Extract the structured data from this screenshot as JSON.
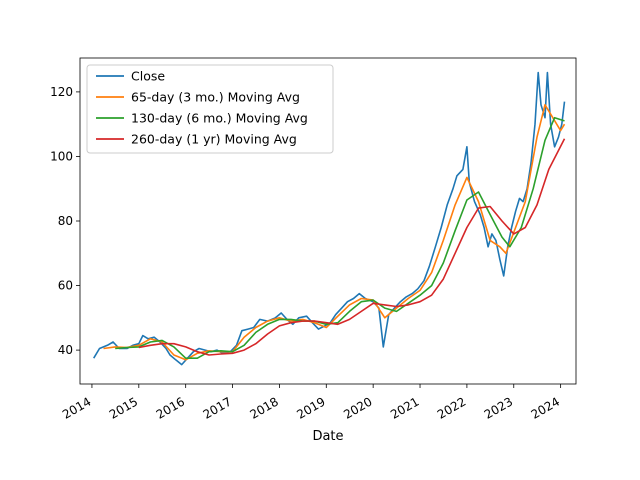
{
  "chart_data": {
    "type": "line",
    "xlabel": "Date",
    "ylabel": "",
    "xlim": [
      "2013-09-30",
      "2024-04-30"
    ],
    "ylim": [
      29.5,
      130.5
    ],
    "x_ticks": [
      "2014",
      "2015",
      "2016",
      "2017",
      "2018",
      "2019",
      "2020",
      "2021",
      "2022",
      "2023",
      "2024"
    ],
    "y_ticks": [
      40,
      60,
      80,
      100,
      120
    ],
    "grid": false,
    "legend_position": "top-left",
    "series": [
      {
        "name": "Close",
        "color": "#1f77b4",
        "points": [
          [
            "2014-01-15",
            37.5
          ],
          [
            "2014-03-01",
            40.5
          ],
          [
            "2014-05-01",
            41.5
          ],
          [
            "2014-06-15",
            42.5
          ],
          [
            "2014-08-01",
            40.5
          ],
          [
            "2014-10-01",
            40.5
          ],
          [
            "2014-11-15",
            41.5
          ],
          [
            "2015-01-01",
            42.0
          ],
          [
            "2015-02-01",
            44.5
          ],
          [
            "2015-03-15",
            43.5
          ],
          [
            "2015-05-01",
            44.0
          ],
          [
            "2015-06-15",
            42.5
          ],
          [
            "2015-08-01",
            40.5
          ],
          [
            "2015-09-01",
            38.5
          ],
          [
            "2015-10-15",
            37.0
          ],
          [
            "2015-12-01",
            35.5
          ],
          [
            "2016-01-15",
            37.5
          ],
          [
            "2016-03-01",
            39.5
          ],
          [
            "2016-04-15",
            40.5
          ],
          [
            "2016-06-01",
            40.0
          ],
          [
            "2016-07-15",
            39.5
          ],
          [
            "2016-09-01",
            40.0
          ],
          [
            "2016-10-15",
            39.0
          ],
          [
            "2016-12-15",
            39.5
          ],
          [
            "2017-02-01",
            41.5
          ],
          [
            "2017-03-15",
            46.0
          ],
          [
            "2017-05-01",
            46.5
          ],
          [
            "2017-06-15",
            47.0
          ],
          [
            "2017-08-01",
            49.5
          ],
          [
            "2017-10-01",
            49.0
          ],
          [
            "2017-12-01",
            50.0
          ],
          [
            "2018-01-15",
            51.5
          ],
          [
            "2018-03-01",
            49.5
          ],
          [
            "2018-04-15",
            48.0
          ],
          [
            "2018-06-01",
            50.0
          ],
          [
            "2018-08-01",
            50.5
          ],
          [
            "2018-09-15",
            48.5
          ],
          [
            "2018-11-01",
            46.5
          ],
          [
            "2018-12-20",
            47.5
          ],
          [
            "2019-02-01",
            48.5
          ],
          [
            "2019-03-15",
            51.0
          ],
          [
            "2019-05-01",
            53.0
          ],
          [
            "2019-06-15",
            55.0
          ],
          [
            "2019-08-01",
            56.0
          ],
          [
            "2019-09-15",
            57.5
          ],
          [
            "2019-11-01",
            56.0
          ],
          [
            "2020-01-01",
            55.0
          ],
          [
            "2020-02-15",
            53.0
          ],
          [
            "2020-03-20",
            41.0
          ],
          [
            "2020-05-01",
            51.0
          ],
          [
            "2020-06-15",
            53.0
          ],
          [
            "2020-08-01",
            55.0
          ],
          [
            "2020-09-15",
            56.5
          ],
          [
            "2020-11-01",
            57.5
          ],
          [
            "2020-12-15",
            59.0
          ],
          [
            "2021-02-01",
            61.5
          ],
          [
            "2021-03-15",
            66.0
          ],
          [
            "2021-05-01",
            72.0
          ],
          [
            "2021-06-15",
            78.0
          ],
          [
            "2021-08-01",
            85.0
          ],
          [
            "2021-09-15",
            90.0
          ],
          [
            "2021-10-15",
            94.0
          ],
          [
            "2021-12-01",
            96.0
          ],
          [
            "2022-01-01",
            103.0
          ],
          [
            "2022-01-20",
            92.0
          ],
          [
            "2022-03-01",
            86.0
          ],
          [
            "2022-04-15",
            82.0
          ],
          [
            "2022-05-15",
            78.0
          ],
          [
            "2022-06-15",
            72.0
          ],
          [
            "2022-07-15",
            76.0
          ],
          [
            "2022-08-15",
            74.0
          ],
          [
            "2022-09-15",
            68.0
          ],
          [
            "2022-10-15",
            63.0
          ],
          [
            "2022-11-15",
            72.0
          ],
          [
            "2022-12-15",
            78.0
          ],
          [
            "2023-01-15",
            83.0
          ],
          [
            "2023-02-15",
            87.0
          ],
          [
            "2023-03-15",
            86.0
          ],
          [
            "2023-04-15",
            90.0
          ],
          [
            "2023-05-15",
            98.0
          ],
          [
            "2023-06-15",
            110.0
          ],
          [
            "2023-07-10",
            126.0
          ],
          [
            "2023-08-01",
            116.0
          ],
          [
            "2023-09-01",
            112.0
          ],
          [
            "2023-09-20",
            126.0
          ],
          [
            "2023-10-15",
            110.0
          ],
          [
            "2023-11-15",
            103.0
          ],
          [
            "2023-12-15",
            106.0
          ],
          [
            "2024-01-10",
            110.0
          ],
          [
            "2024-01-31",
            117.0
          ]
        ]
      },
      {
        "name": "65-day (3 mo.) Moving Avg",
        "color": "#ff7f0e",
        "points": [
          [
            "2014-04-01",
            40.5
          ],
          [
            "2014-07-01",
            41.0
          ],
          [
            "2014-10-01",
            40.8
          ],
          [
            "2015-01-01",
            41.5
          ],
          [
            "2015-04-01",
            43.5
          ],
          [
            "2015-07-01",
            42.5
          ],
          [
            "2015-10-01",
            38.5
          ],
          [
            "2016-01-01",
            37.0
          ],
          [
            "2016-04-01",
            39.0
          ],
          [
            "2016-07-01",
            39.8
          ],
          [
            "2016-10-01",
            39.5
          ],
          [
            "2017-01-01",
            39.5
          ],
          [
            "2017-04-01",
            44.0
          ],
          [
            "2017-07-01",
            47.0
          ],
          [
            "2017-10-01",
            49.0
          ],
          [
            "2018-01-01",
            50.0
          ],
          [
            "2018-04-01",
            49.0
          ],
          [
            "2018-07-01",
            49.5
          ],
          [
            "2018-10-01",
            48.5
          ],
          [
            "2019-01-01",
            47.0
          ],
          [
            "2019-04-01",
            50.5
          ],
          [
            "2019-07-01",
            54.0
          ],
          [
            "2019-10-01",
            56.0
          ],
          [
            "2020-01-01",
            55.5
          ],
          [
            "2020-04-01",
            50.0
          ],
          [
            "2020-07-01",
            53.0
          ],
          [
            "2020-10-01",
            56.0
          ],
          [
            "2021-01-01",
            58.5
          ],
          [
            "2021-04-01",
            64.0
          ],
          [
            "2021-07-01",
            74.0
          ],
          [
            "2021-10-01",
            85.0
          ],
          [
            "2022-01-01",
            93.5
          ],
          [
            "2022-04-01",
            86.0
          ],
          [
            "2022-07-01",
            74.0
          ],
          [
            "2022-09-15",
            72.0
          ],
          [
            "2022-11-01",
            70.0
          ],
          [
            "2023-01-15",
            78.0
          ],
          [
            "2023-04-01",
            86.0
          ],
          [
            "2023-07-01",
            106.0
          ],
          [
            "2023-09-01",
            116.0
          ],
          [
            "2023-11-01",
            112.0
          ],
          [
            "2024-01-01",
            108.0
          ],
          [
            "2024-01-31",
            110.0
          ]
        ]
      },
      {
        "name": "130-day (6 mo.) Moving Avg",
        "color": "#2ca02c",
        "points": [
          [
            "2014-07-01",
            40.5
          ],
          [
            "2014-10-01",
            40.8
          ],
          [
            "2015-01-01",
            41.0
          ],
          [
            "2015-04-01",
            42.5
          ],
          [
            "2015-07-01",
            43.0
          ],
          [
            "2015-10-01",
            41.0
          ],
          [
            "2016-01-01",
            37.5
          ],
          [
            "2016-04-01",
            37.5
          ],
          [
            "2016-07-01",
            39.5
          ],
          [
            "2016-10-01",
            39.8
          ],
          [
            "2017-01-01",
            39.5
          ],
          [
            "2017-04-01",
            41.5
          ],
          [
            "2017-07-01",
            45.5
          ],
          [
            "2017-10-01",
            48.0
          ],
          [
            "2018-01-01",
            49.5
          ],
          [
            "2018-04-01",
            49.5
          ],
          [
            "2018-07-01",
            49.0
          ],
          [
            "2018-10-01",
            49.0
          ],
          [
            "2019-01-01",
            48.0
          ],
          [
            "2019-04-01",
            48.5
          ],
          [
            "2019-07-01",
            52.0
          ],
          [
            "2019-10-01",
            55.0
          ],
          [
            "2020-01-01",
            55.5
          ],
          [
            "2020-04-01",
            53.0
          ],
          [
            "2020-07-01",
            52.0
          ],
          [
            "2020-10-01",
            54.5
          ],
          [
            "2021-01-01",
            57.0
          ],
          [
            "2021-04-01",
            60.0
          ],
          [
            "2021-07-01",
            67.0
          ],
          [
            "2021-10-01",
            77.0
          ],
          [
            "2022-01-01",
            86.5
          ],
          [
            "2022-04-01",
            89.0
          ],
          [
            "2022-07-01",
            82.0
          ],
          [
            "2022-10-01",
            75.0
          ],
          [
            "2022-12-01",
            72.0
          ],
          [
            "2023-03-01",
            78.0
          ],
          [
            "2023-06-01",
            90.0
          ],
          [
            "2023-09-01",
            105.0
          ],
          [
            "2023-11-15",
            112.0
          ],
          [
            "2024-01-31",
            111.0
          ]
        ]
      },
      {
        "name": "260-day (1 yr) Moving Avg",
        "color": "#d62728",
        "points": [
          [
            "2015-01-01",
            40.8
          ],
          [
            "2015-04-01",
            41.5
          ],
          [
            "2015-07-01",
            42.0
          ],
          [
            "2015-10-01",
            42.0
          ],
          [
            "2016-01-01",
            41.0
          ],
          [
            "2016-04-01",
            39.5
          ],
          [
            "2016-07-01",
            38.5
          ],
          [
            "2016-10-01",
            38.8
          ],
          [
            "2017-01-01",
            39.0
          ],
          [
            "2017-04-01",
            40.0
          ],
          [
            "2017-07-01",
            42.0
          ],
          [
            "2017-10-01",
            45.0
          ],
          [
            "2018-01-01",
            47.5
          ],
          [
            "2018-04-01",
            48.5
          ],
          [
            "2018-07-01",
            49.0
          ],
          [
            "2018-10-01",
            49.0
          ],
          [
            "2019-01-01",
            48.5
          ],
          [
            "2019-04-01",
            48.0
          ],
          [
            "2019-07-01",
            49.5
          ],
          [
            "2019-10-01",
            52.0
          ],
          [
            "2020-01-01",
            54.5
          ],
          [
            "2020-04-01",
            54.0
          ],
          [
            "2020-07-01",
            53.5
          ],
          [
            "2020-10-01",
            54.0
          ],
          [
            "2021-01-01",
            55.0
          ],
          [
            "2021-04-01",
            57.0
          ],
          [
            "2021-07-01",
            62.0
          ],
          [
            "2021-10-01",
            70.0
          ],
          [
            "2022-01-01",
            78.0
          ],
          [
            "2022-04-01",
            84.0
          ],
          [
            "2022-07-01",
            84.5
          ],
          [
            "2022-10-01",
            80.0
          ],
          [
            "2023-01-01",
            76.0
          ],
          [
            "2023-04-01",
            78.0
          ],
          [
            "2023-07-01",
            85.0
          ],
          [
            "2023-10-01",
            96.0
          ],
          [
            "2024-01-31",
            105.5
          ]
        ]
      }
    ]
  }
}
